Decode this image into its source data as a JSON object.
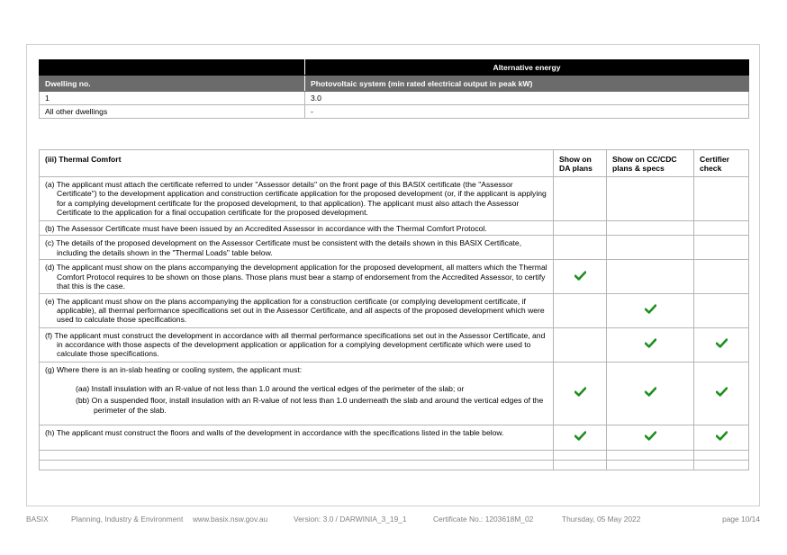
{
  "alt_energy": {
    "header": "Alternative energy",
    "col1": "Dwelling no.",
    "col2": "Photovoltaic system (min rated electrical output in peak kW)",
    "rows": [
      {
        "dwelling": "1",
        "value": "3.0"
      },
      {
        "dwelling": "All other dwellings",
        "value": "-"
      }
    ]
  },
  "thermal": {
    "title": "(iii) Thermal Comfort",
    "col_da": "Show on DA plans",
    "col_cc": "Show on CC/CDC plans & specs",
    "col_cert": "Certifier check",
    "rows": [
      {
        "text": "(a) The applicant must attach the certificate referred to under \"Assessor details\" on the front page of this BASIX certificate (the \"Assessor Certificate\") to the development application and construction certificate application for the proposed development (or, if the applicant is applying for a complying development certificate for the proposed development, to that application). The applicant must also attach the Assessor Certificate to the application for a final occupation certificate for the proposed development.",
        "da": false,
        "cc": false,
        "cert": false
      },
      {
        "text": "(b) The Assessor Certificate must have been issued by an Accredited Assessor in accordance with the Thermal Comfort Protocol.",
        "da": false,
        "cc": false,
        "cert": false
      },
      {
        "text": "(c) The details of the proposed development on the Assessor Certificate must be consistent with the details shown in this BASIX Certificate, including the details shown in the \"Thermal Loads\" table below.",
        "da": false,
        "cc": false,
        "cert": false
      },
      {
        "text": "(d) The applicant must show on the plans accompanying the development application for the proposed development, all matters which the Thermal Comfort Protocol requires to be shown on those plans. Those plans must bear a stamp of endorsement from the Accredited Assessor, to certify that this is the case.",
        "da": true,
        "cc": false,
        "cert": false
      },
      {
        "text": "(e) The applicant must show on the plans accompanying the application for a construction certificate (or complying development certificate, if applicable), all thermal performance specifications set out in the Assessor Certificate, and all aspects of the proposed development which were used to calculate those specifications.",
        "da": false,
        "cc": true,
        "cert": false
      },
      {
        "text": "(f) The applicant must construct the development in accordance with all thermal performance specifications set out in the Assessor Certificate, and in accordance with those aspects of the development application or application for a complying development certificate which were used to calculate those specifications.",
        "da": false,
        "cc": true,
        "cert": true
      },
      {
        "text": "(g) Where there is an in-slab heating or cooling system, the applicant must:",
        "sub1": "(aa) Install insulation with an R-value of not less than 1.0 around the vertical edges of the perimeter of the slab; or",
        "sub2": "(bb) On a suspended floor, install insulation with an R-value of not less than 1.0 underneath the slab and around the vertical edges of the perimeter of the slab.",
        "da": true,
        "cc": true,
        "cert": true
      },
      {
        "text": "(h) The applicant must construct the floors and walls of the development in accordance with the specifications listed in the table below.",
        "da": true,
        "cc": true,
        "cert": true
      }
    ]
  },
  "icons": {
    "check": "checkmark-icon",
    "check_color": "#1e8f1e"
  },
  "footer": {
    "basix": "BASIX",
    "dept": "Planning, Industry & Environment",
    "url": "www.basix.nsw.gov.au",
    "version": "Version: 3.0 / DARWINIA_3_19_1",
    "cert_no": "Certificate No.: 1203618M_02",
    "date": "Thursday, 05 May 2022",
    "page": "page 10/14"
  }
}
